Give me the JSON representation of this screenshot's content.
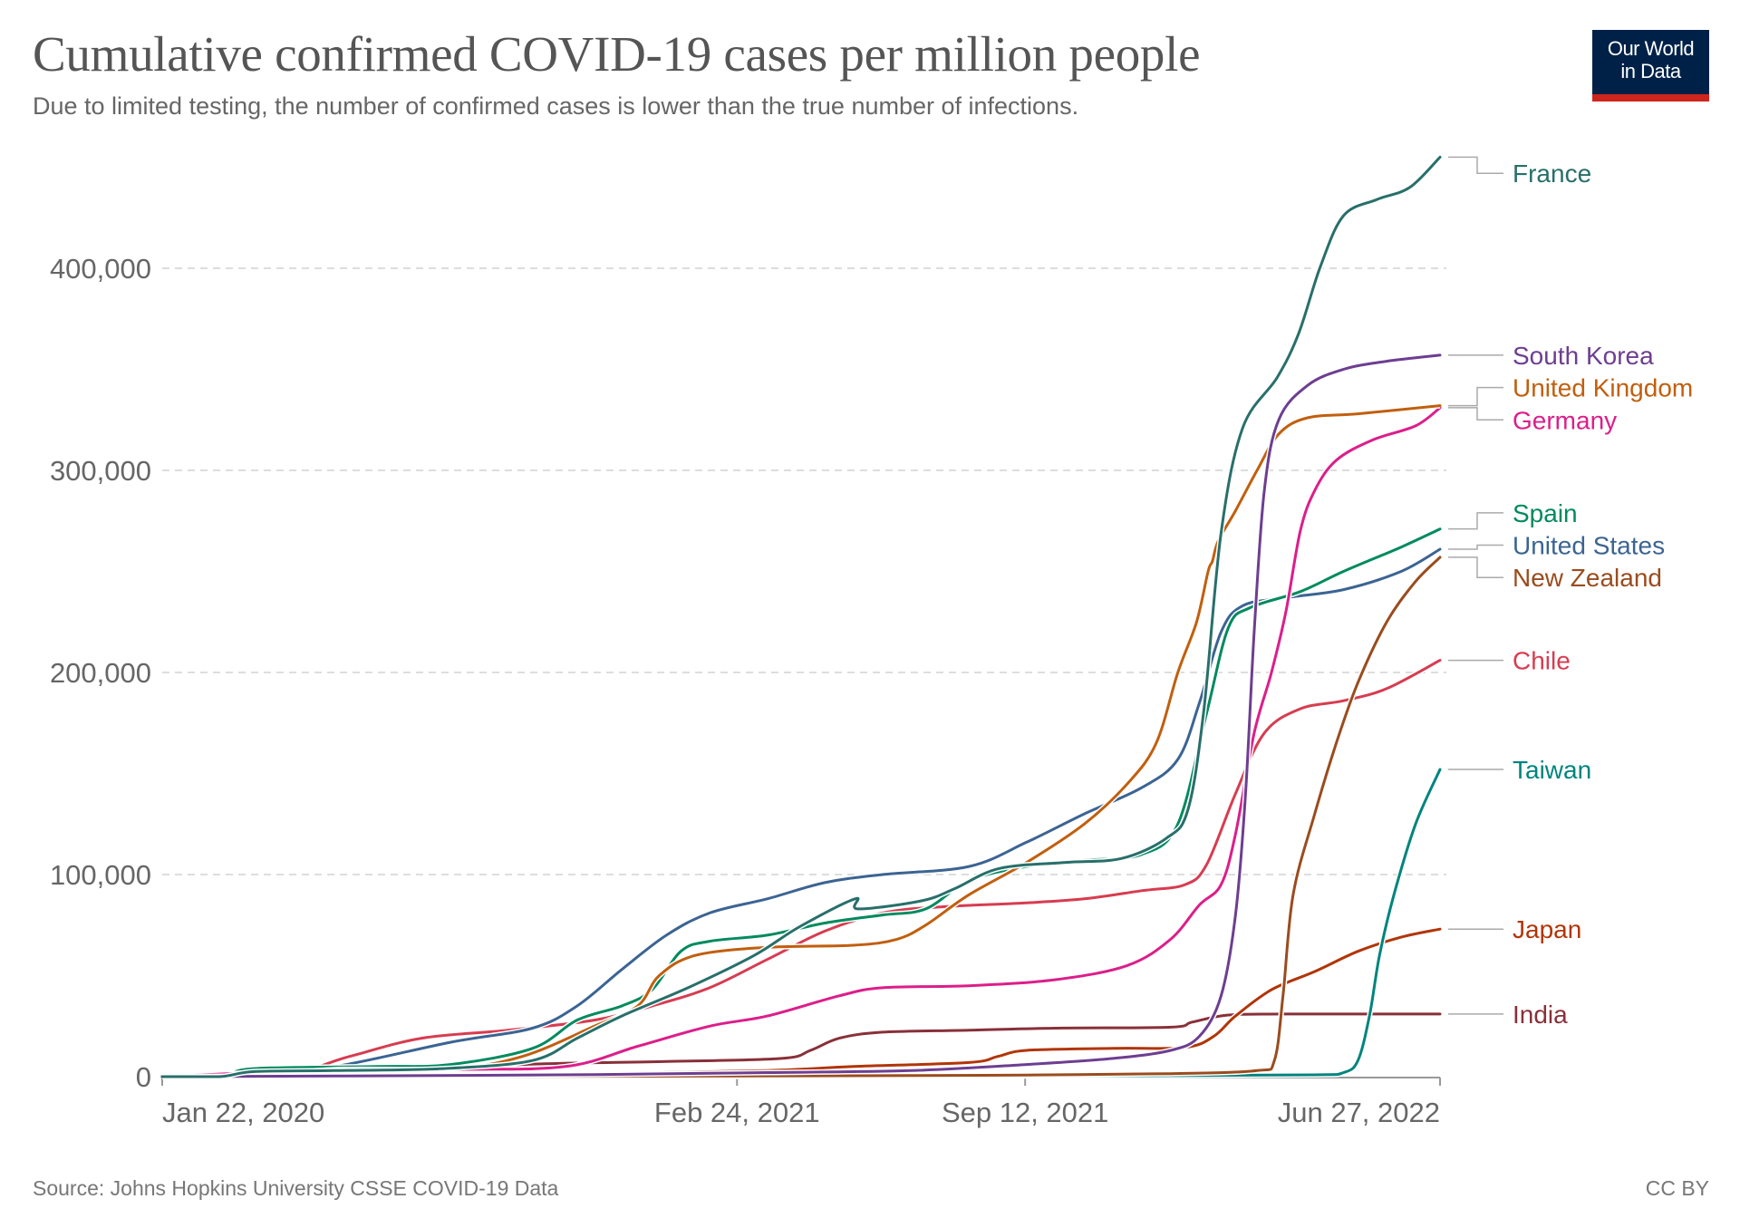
{
  "header": {
    "title": "Cumulative confirmed COVID-19 cases per million people",
    "subtitle": "Due to limited testing, the number of confirmed cases is lower than the true number of infections.",
    "logo_line1": "Our World",
    "logo_line2": "in Data"
  },
  "footer": {
    "source": "Source: Johns Hopkins University CSSE COVID-19 Data",
    "license": "CC BY"
  },
  "colors": {
    "logo_bg": "#002147",
    "logo_accent": "#ce261e",
    "grid": "#dddddd",
    "axis": "#999999",
    "tick_text": "#666666"
  },
  "chart_data": {
    "type": "line",
    "title": "Cumulative confirmed COVID-19 cases per million people",
    "subtitle": "Due to limited testing, the number of confirmed cases is lower than the true number of infections.",
    "xlabel": "",
    "ylabel": "",
    "x_unit": "days since Jan 22, 2020",
    "x_start_date": "Jan 22, 2020",
    "xlim": [
      0,
      887
    ],
    "ylim": [
      0,
      460000
    ],
    "grid": true,
    "legend": "right (inline labels at line ends)",
    "x_ticks": [
      {
        "day": 0,
        "label": "Jan 22, 2020"
      },
      {
        "day": 399,
        "label": "Feb 24, 2021"
      },
      {
        "day": 599,
        "label": "Sep 12, 2021"
      },
      {
        "day": 887,
        "label": "Jun 27, 2022"
      }
    ],
    "y_ticks": [
      {
        "value": 0,
        "label": "0"
      },
      {
        "value": 100000,
        "label": "100,000"
      },
      {
        "value": 200000,
        "label": "200,000"
      },
      {
        "value": 300000,
        "label": "300,000"
      },
      {
        "value": 400000,
        "label": "400,000"
      }
    ],
    "series": [
      {
        "name": "France",
        "color": "#286f6a",
        "label_value": 455000,
        "points": [
          [
            0,
            0
          ],
          [
            40,
            10
          ],
          [
            64,
            2500
          ],
          [
            120,
            3000
          ],
          [
            195,
            4000
          ],
          [
            257,
            8000
          ],
          [
            288,
            19000
          ],
          [
            319,
            30000
          ],
          [
            365,
            44000
          ],
          [
            411,
            60000
          ],
          [
            442,
            74000
          ],
          [
            481,
            88000
          ],
          [
            483,
            83000
          ],
          [
            527,
            87000
          ],
          [
            550,
            93000
          ],
          [
            581,
            103000
          ],
          [
            627,
            106000
          ],
          [
            666,
            108000
          ],
          [
            697,
            118000
          ],
          [
            712,
            132000
          ],
          [
            723,
            181000
          ],
          [
            735,
            269000
          ],
          [
            750,
            321000
          ],
          [
            774,
            346000
          ],
          [
            789,
            368000
          ],
          [
            804,
            401000
          ],
          [
            820,
            426000
          ],
          [
            843,
            434000
          ],
          [
            866,
            440000
          ],
          [
            887,
            455000
          ]
        ]
      },
      {
        "name": "South Korea",
        "color": "#6d3e91",
        "label_value": 357000,
        "points": [
          [
            0,
            0
          ],
          [
            120,
            300
          ],
          [
            300,
            1000
          ],
          [
            420,
            2000
          ],
          [
            520,
            3000
          ],
          [
            600,
            6000
          ],
          [
            660,
            9000
          ],
          [
            700,
            13000
          ],
          [
            720,
            20000
          ],
          [
            735,
            40000
          ],
          [
            745,
            80000
          ],
          [
            752,
            140000
          ],
          [
            758,
            220000
          ],
          [
            765,
            290000
          ],
          [
            775,
            325000
          ],
          [
            795,
            342000
          ],
          [
            820,
            350000
          ],
          [
            850,
            354000
          ],
          [
            887,
            357000
          ]
        ]
      },
      {
        "name": "United Kingdom",
        "color": "#c15f0e",
        "label_value": 332000,
        "points": [
          [
            0,
            0
          ],
          [
            60,
            500
          ],
          [
            120,
            3500
          ],
          [
            200,
            4000
          ],
          [
            250,
            10000
          ],
          [
            300,
            25000
          ],
          [
            330,
            35000
          ],
          [
            345,
            50000
          ],
          [
            370,
            60000
          ],
          [
            420,
            64000
          ],
          [
            480,
            65000
          ],
          [
            510,
            68000
          ],
          [
            530,
            75000
          ],
          [
            560,
            90000
          ],
          [
            600,
            106000
          ],
          [
            640,
            125000
          ],
          [
            670,
            145000
          ],
          [
            690,
            165000
          ],
          [
            705,
            200000
          ],
          [
            718,
            225000
          ],
          [
            726,
            250000
          ],
          [
            729,
            255000
          ],
          [
            733,
            265000
          ],
          [
            745,
            280000
          ],
          [
            760,
            300000
          ],
          [
            775,
            318000
          ],
          [
            795,
            326000
          ],
          [
            830,
            328000
          ],
          [
            887,
            332000
          ]
        ]
      },
      {
        "name": "Germany",
        "color": "#dc1e8a",
        "label_value": 331000,
        "points": [
          [
            0,
            0
          ],
          [
            70,
            2000
          ],
          [
            200,
            3500
          ],
          [
            280,
            5000
          ],
          [
            330,
            15000
          ],
          [
            380,
            25000
          ],
          [
            420,
            30000
          ],
          [
            470,
            40000
          ],
          [
            500,
            44000
          ],
          [
            560,
            45000
          ],
          [
            620,
            48000
          ],
          [
            670,
            55000
          ],
          [
            700,
            68000
          ],
          [
            720,
            85000
          ],
          [
            735,
            95000
          ],
          [
            745,
            120000
          ],
          [
            758,
            170000
          ],
          [
            770,
            200000
          ],
          [
            780,
            230000
          ],
          [
            790,
            270000
          ],
          [
            800,
            290000
          ],
          [
            815,
            305000
          ],
          [
            840,
            315000
          ],
          [
            870,
            322000
          ],
          [
            887,
            331000
          ]
        ]
      },
      {
        "name": "Spain",
        "color": "#018a5f",
        "label_value": 271000,
        "points": [
          [
            0,
            0
          ],
          [
            40,
            100
          ],
          [
            64,
            4000
          ],
          [
            150,
            5000
          ],
          [
            200,
            6000
          ],
          [
            257,
            14000
          ],
          [
            288,
            28000
          ],
          [
            319,
            35000
          ],
          [
            340,
            43000
          ],
          [
            360,
            62000
          ],
          [
            380,
            67000
          ],
          [
            420,
            70000
          ],
          [
            460,
            76000
          ],
          [
            500,
            80000
          ],
          [
            530,
            83000
          ],
          [
            560,
            97000
          ],
          [
            600,
            104000
          ],
          [
            640,
            107000
          ],
          [
            680,
            110000
          ],
          [
            705,
            125000
          ],
          [
            725,
            180000
          ],
          [
            740,
            222000
          ],
          [
            755,
            232000
          ],
          [
            790,
            240000
          ],
          [
            820,
            250000
          ],
          [
            860,
            262000
          ],
          [
            887,
            271000
          ]
        ]
      },
      {
        "name": "United States",
        "color": "#3b6492",
        "label_value": 261000,
        "points": [
          [
            0,
            0
          ],
          [
            60,
            1000
          ],
          [
            120,
            5000
          ],
          [
            200,
            17000
          ],
          [
            257,
            24000
          ],
          [
            288,
            35000
          ],
          [
            319,
            53000
          ],
          [
            350,
            70000
          ],
          [
            380,
            81000
          ],
          [
            420,
            88000
          ],
          [
            460,
            96000
          ],
          [
            500,
            100000
          ],
          [
            560,
            104000
          ],
          [
            600,
            116000
          ],
          [
            640,
            130000
          ],
          [
            680,
            143000
          ],
          [
            705,
            157000
          ],
          [
            720,
            185000
          ],
          [
            735,
            220000
          ],
          [
            750,
            233000
          ],
          [
            780,
            237000
          ],
          [
            820,
            241000
          ],
          [
            860,
            250000
          ],
          [
            887,
            261000
          ]
        ]
      },
      {
        "name": "New Zealand",
        "color": "#9a4c1e",
        "label_value": 257000,
        "points": [
          [
            0,
            0
          ],
          [
            300,
            200
          ],
          [
            500,
            500
          ],
          [
            600,
            800
          ],
          [
            700,
            1500
          ],
          [
            760,
            3000
          ],
          [
            772,
            8000
          ],
          [
            778,
            40000
          ],
          [
            785,
            90000
          ],
          [
            800,
            130000
          ],
          [
            815,
            165000
          ],
          [
            830,
            195000
          ],
          [
            850,
            225000
          ],
          [
            870,
            245000
          ],
          [
            887,
            257000
          ]
        ]
      },
      {
        "name": "Chile",
        "color": "#d73c50",
        "label_value": 206000,
        "points": [
          [
            0,
            0
          ],
          [
            80,
            100
          ],
          [
            130,
            10000
          ],
          [
            180,
            19000
          ],
          [
            240,
            23000
          ],
          [
            300,
            28000
          ],
          [
            340,
            35000
          ],
          [
            380,
            44000
          ],
          [
            420,
            58000
          ],
          [
            460,
            72000
          ],
          [
            500,
            81000
          ],
          [
            540,
            84000
          ],
          [
            600,
            86000
          ],
          [
            640,
            88000
          ],
          [
            680,
            92000
          ],
          [
            710,
            95000
          ],
          [
            725,
            105000
          ],
          [
            745,
            140000
          ],
          [
            765,
            170000
          ],
          [
            790,
            182000
          ],
          [
            820,
            186000
          ],
          [
            850,
            192000
          ],
          [
            887,
            206000
          ]
        ]
      },
      {
        "name": "Taiwan",
        "color": "#00847e",
        "label_value": 152000,
        "points": [
          [
            0,
            0
          ],
          [
            500,
            200
          ],
          [
            700,
            500
          ],
          [
            800,
            900
          ],
          [
            820,
            2000
          ],
          [
            830,
            8000
          ],
          [
            838,
            30000
          ],
          [
            845,
            60000
          ],
          [
            855,
            90000
          ],
          [
            870,
            125000
          ],
          [
            887,
            152000
          ]
        ]
      },
      {
        "name": "Japan",
        "color": "#b13507",
        "label_value": 73000,
        "points": [
          [
            0,
            0
          ],
          [
            200,
            500
          ],
          [
            300,
            1500
          ],
          [
            420,
            3000
          ],
          [
            480,
            5000
          ],
          [
            560,
            7000
          ],
          [
            580,
            10000
          ],
          [
            600,
            13000
          ],
          [
            660,
            14000
          ],
          [
            710,
            14500
          ],
          [
            730,
            20000
          ],
          [
            745,
            30000
          ],
          [
            770,
            43000
          ],
          [
            800,
            52000
          ],
          [
            830,
            62000
          ],
          [
            860,
            69000
          ],
          [
            887,
            73000
          ]
        ]
      },
      {
        "name": "India",
        "color": "#883039",
        "label_value": 31000,
        "points": [
          [
            0,
            0
          ],
          [
            150,
            2000
          ],
          [
            250,
            6000
          ],
          [
            350,
            7500
          ],
          [
            430,
            9000
          ],
          [
            450,
            13000
          ],
          [
            470,
            19000
          ],
          [
            500,
            22000
          ],
          [
            560,
            23000
          ],
          [
            620,
            24000
          ],
          [
            700,
            24500
          ],
          [
            715,
            27000
          ],
          [
            740,
            30500
          ],
          [
            780,
            31000
          ],
          [
            887,
            31000
          ]
        ]
      }
    ],
    "labels": [
      {
        "series": "France",
        "label_value": 447000
      },
      {
        "series": "South Korea",
        "label_value": 357000
      },
      {
        "series": "United Kingdom",
        "label_value": 341000
      },
      {
        "series": "Germany",
        "label_value": 325000
      },
      {
        "series": "Spain",
        "label_value": 279000
      },
      {
        "series": "United States",
        "label_value": 263000
      },
      {
        "series": "New Zealand",
        "label_value": 247000
      },
      {
        "series": "Chile",
        "label_value": 206000
      },
      {
        "series": "Taiwan",
        "label_value": 152000
      },
      {
        "series": "Japan",
        "label_value": 73000
      },
      {
        "series": "India",
        "label_value": 31000
      }
    ]
  }
}
